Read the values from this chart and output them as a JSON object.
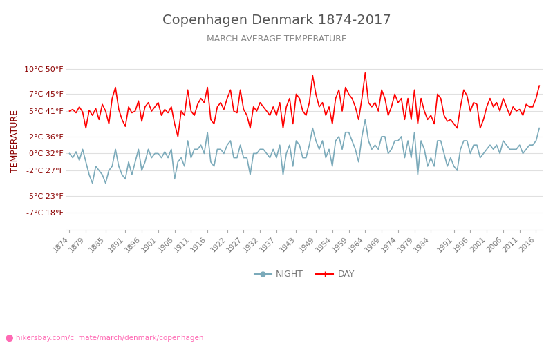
{
  "title": "Copenhagen Denmark 1874-2017",
  "subtitle": "MARCH AVERAGE TEMPERATURE",
  "ylabel": "TEMPERATURE",
  "legend_night": "NIGHT",
  "legend_day": "DAY",
  "color_day": "#ff0000",
  "color_night": "#7BAABA",
  "background_color": "#ffffff",
  "grid_color": "#e0e0e0",
  "title_color": "#555555",
  "subtitle_color": "#888888",
  "ylabel_color": "#8B0000",
  "tick_color": "#777777",
  "yticks_c": [
    -7,
    -5,
    -2,
    0,
    2,
    5,
    7,
    10
  ],
  "yticks_f": [
    18,
    23,
    27,
    32,
    36,
    41,
    45,
    50
  ],
  "years": [
    1874,
    1875,
    1876,
    1877,
    1878,
    1879,
    1880,
    1881,
    1882,
    1883,
    1884,
    1885,
    1886,
    1887,
    1888,
    1889,
    1890,
    1891,
    1892,
    1893,
    1894,
    1895,
    1896,
    1897,
    1898,
    1899,
    1900,
    1901,
    1902,
    1903,
    1904,
    1905,
    1906,
    1907,
    1908,
    1909,
    1910,
    1911,
    1912,
    1913,
    1914,
    1915,
    1916,
    1917,
    1918,
    1919,
    1920,
    1921,
    1922,
    1923,
    1924,
    1925,
    1926,
    1927,
    1928,
    1929,
    1930,
    1931,
    1932,
    1933,
    1934,
    1935,
    1936,
    1937,
    1938,
    1939,
    1940,
    1941,
    1942,
    1943,
    1944,
    1945,
    1946,
    1947,
    1948,
    1949,
    1950,
    1951,
    1952,
    1953,
    1954,
    1955,
    1956,
    1957,
    1958,
    1959,
    1960,
    1961,
    1962,
    1963,
    1964,
    1965,
    1966,
    1967,
    1968,
    1969,
    1970,
    1971,
    1972,
    1973,
    1974,
    1975,
    1976,
    1977,
    1978,
    1979,
    1980,
    1981,
    1982,
    1983,
    1984,
    1985,
    1986,
    1987,
    1988,
    1989,
    1990,
    1991,
    1992,
    1993,
    1994,
    1995,
    1996,
    1997,
    1998,
    1999,
    2000,
    2001,
    2002,
    2003,
    2004,
    2005,
    2006,
    2007,
    2008,
    2009,
    2010,
    2011,
    2012,
    2013,
    2014,
    2015,
    2016,
    2017
  ],
  "day_temps": [
    5.0,
    5.2,
    4.8,
    5.5,
    4.9,
    3.0,
    5.1,
    4.5,
    5.3,
    4.0,
    5.8,
    5.0,
    3.5,
    6.5,
    7.8,
    5.2,
    4.0,
    3.2,
    5.5,
    4.8,
    5.0,
    6.2,
    3.8,
    5.5,
    6.0,
    5.0,
    5.5,
    6.0,
    4.5,
    5.2,
    4.8,
    5.5,
    3.5,
    2.0,
    5.0,
    4.5,
    7.5,
    5.0,
    4.5,
    5.8,
    6.5,
    6.0,
    7.8,
    4.0,
    3.5,
    5.5,
    6.0,
    5.2,
    6.5,
    7.5,
    5.0,
    4.8,
    7.5,
    5.2,
    4.5,
    3.0,
    5.5,
    5.0,
    6.0,
    5.5,
    5.0,
    4.5,
    5.5,
    4.5,
    6.0,
    3.0,
    5.5,
    6.5,
    3.5,
    7.0,
    6.5,
    5.0,
    4.5,
    6.0,
    9.2,
    7.0,
    5.5,
    6.0,
    4.5,
    5.5,
    3.5,
    6.5,
    7.5,
    5.0,
    7.8,
    7.0,
    6.5,
    5.5,
    4.0,
    6.5,
    9.5,
    6.0,
    5.5,
    6.0,
    5.0,
    7.5,
    6.5,
    4.5,
    5.5,
    7.0,
    6.0,
    6.5,
    4.0,
    6.5,
    4.0,
    7.5,
    3.5,
    6.5,
    5.0,
    4.0,
    4.5,
    3.5,
    7.0,
    6.5,
    4.5,
    3.8,
    4.0,
    3.5,
    3.0,
    5.5,
    7.5,
    6.8,
    5.0,
    6.0,
    5.8,
    3.0,
    4.0,
    5.5,
    6.5,
    5.5,
    6.0,
    5.0,
    6.5,
    5.5,
    4.5,
    5.5,
    5.0,
    5.2,
    4.5,
    5.8,
    5.5,
    5.5,
    6.5,
    8.0
  ],
  "night_temps": [
    0.0,
    -0.5,
    0.2,
    -0.8,
    0.5,
    -1.0,
    -2.5,
    -3.5,
    -1.5,
    -2.0,
    -2.5,
    -3.5,
    -2.0,
    -1.5,
    0.5,
    -1.5,
    -2.5,
    -3.0,
    -1.0,
    -2.5,
    -1.0,
    0.5,
    -2.0,
    -1.0,
    0.5,
    -0.5,
    0.0,
    0.0,
    -0.5,
    0.2,
    -0.5,
    0.5,
    -3.0,
    -1.0,
    -0.5,
    -1.5,
    1.5,
    -0.5,
    0.5,
    0.5,
    1.0,
    0.0,
    2.5,
    -1.0,
    -1.5,
    0.5,
    0.5,
    0.0,
    1.0,
    1.5,
    -0.5,
    -0.5,
    1.0,
    -0.5,
    -0.5,
    -2.5,
    0.0,
    0.0,
    0.5,
    0.5,
    0.0,
    -0.5,
    0.5,
    -0.5,
    1.0,
    -2.5,
    0.0,
    1.0,
    -1.5,
    1.5,
    1.0,
    -0.5,
    -0.5,
    1.0,
    3.0,
    1.5,
    0.5,
    1.5,
    -0.5,
    0.5,
    -1.5,
    1.5,
    2.0,
    0.5,
    2.5,
    2.5,
    1.5,
    0.5,
    -1.0,
    2.0,
    4.0,
    1.5,
    0.5,
    1.0,
    0.5,
    2.0,
    2.0,
    0.0,
    0.5,
    1.5,
    1.5,
    2.0,
    -0.5,
    1.5,
    -0.5,
    2.5,
    -2.5,
    1.5,
    0.5,
    -1.5,
    -0.5,
    -1.5,
    1.5,
    1.5,
    0.0,
    -1.5,
    -0.5,
    -1.5,
    -2.0,
    0.5,
    1.5,
    1.5,
    0.0,
    1.0,
    1.0,
    -0.5,
    0.0,
    0.5,
    1.0,
    0.5,
    1.0,
    0.0,
    1.5,
    1.0,
    0.5,
    0.5,
    0.5,
    1.0,
    0.0,
    0.5,
    1.0,
    1.0,
    1.5,
    3.0
  ],
  "xtick_years": [
    1874,
    1879,
    1885,
    1891,
    1896,
    1901,
    1906,
    1911,
    1916,
    1922,
    1927,
    1932,
    1937,
    1943,
    1949,
    1954,
    1959,
    1964,
    1969,
    1974,
    1979,
    1984,
    1991,
    1996,
    2001,
    2006,
    2011,
    2016
  ],
  "ylim": [
    -9,
    12
  ],
  "figsize": [
    8.0,
    5.0
  ],
  "url_text": "⬤ hikersbay.com/climate/march/denmark/copenhagen",
  "url_color": "#ff69b4"
}
